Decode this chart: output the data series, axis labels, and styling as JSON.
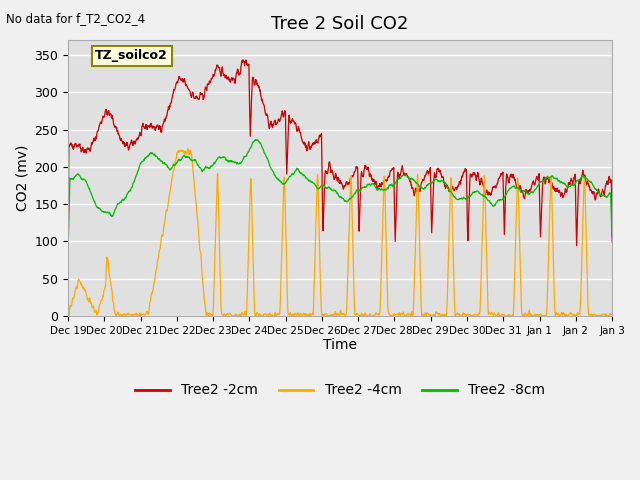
{
  "title": "Tree 2 Soil CO2",
  "subtitle": "No data for f_T2_CO2_4",
  "ylabel": "CO2 (mv)",
  "xlabel": "Time",
  "annotation": "TZ_soilco2",
  "ylim": [
    0,
    370
  ],
  "yticks": [
    0,
    50,
    100,
    150,
    200,
    250,
    300,
    350
  ],
  "xtick_labels": [
    "Dec 19",
    "Dec 20",
    "Dec 21",
    "Dec 22",
    "Dec 23",
    "Dec 24",
    "Dec 25",
    "Dec 26",
    "Dec 27",
    "Dec 28",
    "Dec 29",
    "Dec 30",
    "Dec 31",
    "Jan 1",
    "Jan 2",
    "Jan 3"
  ],
  "xtick_positions": [
    0,
    1,
    2,
    3,
    4,
    5,
    6,
    7,
    8,
    9,
    10,
    11,
    12,
    13,
    14,
    15
  ],
  "colors": {
    "red": "#cc0000",
    "orange": "#ffaa00",
    "green": "#00bb00",
    "fig_bg": "#f0f0f0",
    "ax_bg": "#e0e0e0",
    "grid": "#ffffff"
  },
  "legend_labels": [
    "Tree2 -2cm",
    "Tree2 -4cm",
    "Tree2 -8cm"
  ]
}
